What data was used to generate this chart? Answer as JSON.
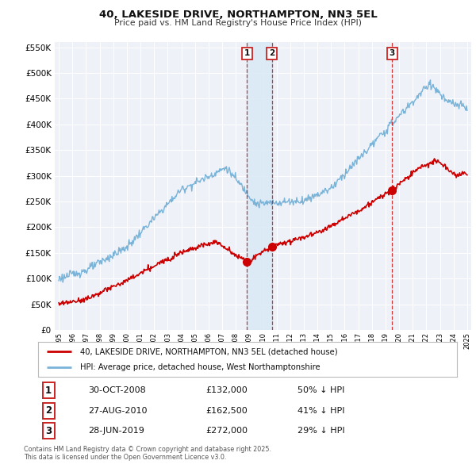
{
  "title": "40, LAKESIDE DRIVE, NORTHAMPTON, NN3 5EL",
  "subtitle": "Price paid vs. HM Land Registry's House Price Index (HPI)",
  "background_color": "#ffffff",
  "plot_bg_color": "#eef2f8",
  "grid_color": "#ffffff",
  "hpi_color": "#7ab3d8",
  "price_color": "#cc0000",
  "vline_color": "#cc2222",
  "shade_color": "#d8e8f5",
  "transactions": [
    {
      "num": 1,
      "date_num": 2008.83,
      "date_str": "30-OCT-2008",
      "price": 132000,
      "pct": "50% ↓ HPI"
    },
    {
      "num": 2,
      "date_num": 2010.65,
      "date_str": "27-AUG-2010",
      "price": 162500,
      "pct": "41% ↓ HPI"
    },
    {
      "num": 3,
      "date_num": 2019.49,
      "date_str": "28-JUN-2019",
      "price": 272000,
      "pct": "29% ↓ HPI"
    }
  ],
  "legend_line1": "40, LAKESIDE DRIVE, NORTHAMPTON, NN3 5EL (detached house)",
  "legend_line2": "HPI: Average price, detached house, West Northamptonshire",
  "footnote": "Contains HM Land Registry data © Crown copyright and database right 2025.\nThis data is licensed under the Open Government Licence v3.0.",
  "ylim": [
    0,
    560000
  ],
  "yticks": [
    0,
    50000,
    100000,
    150000,
    200000,
    250000,
    300000,
    350000,
    400000,
    450000,
    500000,
    550000
  ],
  "xmin": 1994.7,
  "xmax": 2025.3
}
